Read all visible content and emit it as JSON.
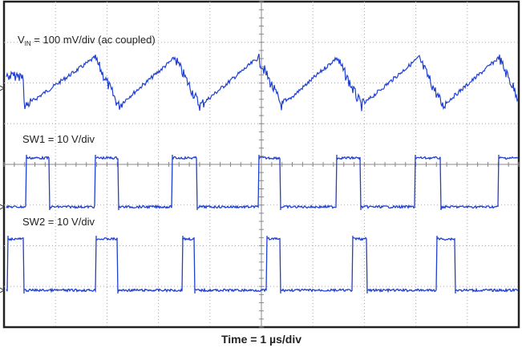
{
  "labels": {
    "vin": {
      "symbol": "V",
      "subscript": "IN",
      "text": " = 100 mV/div (ac coupled)"
    },
    "sw1": "SW1 = 10 V/div",
    "sw2": "SW2 = 10 V/div"
  },
  "x_axis_title": "Time = 1 µs/div"
}
